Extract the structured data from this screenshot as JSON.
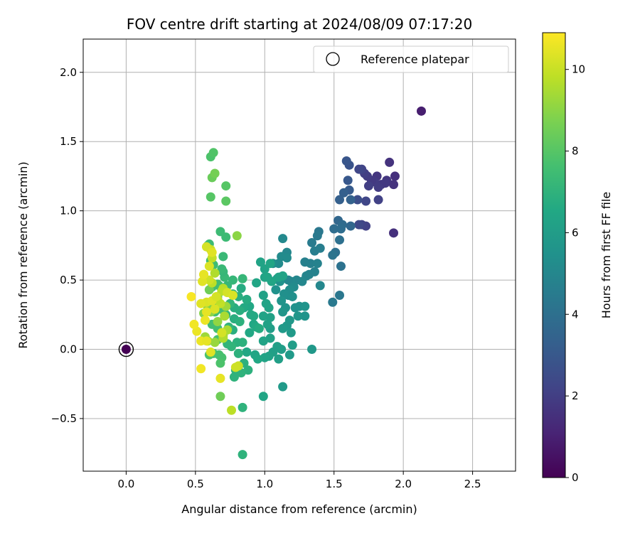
{
  "chart_data": {
    "type": "scatter",
    "title": "FOV centre drift starting at 2024/08/09 07:17:20",
    "xlabel": "Angular distance from reference (arcmin)",
    "ylabel": "Rotation from reference (arcmin)",
    "xlim": [
      -0.31,
      2.81
    ],
    "ylim": [
      -0.88,
      2.24
    ],
    "xticks": [
      "0.0",
      "0.5",
      "1.0",
      "1.5",
      "2.0",
      "2.5"
    ],
    "xtick_values": [
      0,
      0.5,
      1.0,
      1.5,
      2.0,
      2.5
    ],
    "yticks": [
      "−0.5",
      "0.0",
      "0.5",
      "1.0",
      "1.5",
      "2.0"
    ],
    "ytick_values": [
      -0.5,
      0,
      0.5,
      1.0,
      1.5,
      2.0
    ],
    "grid": true,
    "legend": {
      "label": "Reference platepar",
      "placement": "upper right"
    },
    "colorbar": {
      "label": "Hours from first FF file",
      "range": [
        0,
        10.9
      ],
      "ticks": [
        "0",
        "2",
        "4",
        "6",
        "8",
        "10"
      ],
      "tick_values": [
        0,
        2,
        4,
        6,
        8,
        10
      ],
      "colormap": "viridis"
    },
    "reference_point": {
      "x": 0.0,
      "y": 0.0,
      "hours": 0.0
    },
    "points": [
      [
        2.13,
        1.72,
        0.9
      ],
      [
        1.93,
        0.84,
        1.5
      ],
      [
        1.9,
        1.35,
        1.6
      ],
      [
        1.94,
        1.25,
        1.5
      ],
      [
        1.93,
        1.19,
        1.6
      ],
      [
        1.88,
        1.22,
        1.7
      ],
      [
        1.87,
        1.2,
        1.8
      ],
      [
        1.84,
        1.19,
        1.8
      ],
      [
        1.82,
        1.17,
        1.9
      ],
      [
        1.81,
        1.25,
        1.7
      ],
      [
        1.79,
        1.21,
        1.9
      ],
      [
        1.77,
        1.22,
        1.8
      ],
      [
        1.75,
        1.18,
        2.0
      ],
      [
        1.74,
        1.25,
        1.9
      ],
      [
        1.72,
        1.27,
        2.0
      ],
      [
        1.7,
        1.3,
        2.2
      ],
      [
        1.68,
        1.3,
        2.3
      ],
      [
        1.73,
        1.07,
        2.3
      ],
      [
        1.82,
        1.08,
        2.1
      ],
      [
        1.73,
        0.89,
        2.1
      ],
      [
        1.7,
        0.9,
        2.2
      ],
      [
        1.68,
        0.9,
        2.4
      ],
      [
        1.67,
        1.08,
        2.6
      ],
      [
        1.61,
        1.33,
        2.8
      ],
      [
        1.59,
        1.36,
        2.9
      ],
      [
        1.6,
        1.22,
        3.0
      ],
      [
        1.61,
        1.15,
        3.1
      ],
      [
        1.57,
        1.13,
        3.3
      ],
      [
        1.54,
        1.08,
        3.3
      ],
      [
        1.62,
        1.08,
        3.4
      ],
      [
        1.62,
        0.89,
        3.6
      ],
      [
        1.53,
        0.93,
        3.6
      ],
      [
        1.56,
        0.9,
        3.8
      ],
      [
        1.55,
        0.87,
        3.9
      ],
      [
        1.5,
        0.87,
        3.9
      ],
      [
        1.54,
        0.79,
        4.0
      ],
      [
        1.51,
        0.7,
        4.0
      ],
      [
        1.55,
        0.6,
        4.1
      ],
      [
        1.49,
        0.68,
        4.2
      ],
      [
        1.54,
        0.39,
        4.3
      ],
      [
        1.49,
        0.34,
        4.4
      ],
      [
        1.39,
        0.85,
        4.3
      ],
      [
        1.38,
        0.82,
        4.4
      ],
      [
        1.34,
        0.77,
        4.5
      ],
      [
        1.4,
        0.73,
        4.6
      ],
      [
        1.36,
        0.71,
        4.6
      ],
      [
        1.33,
        0.62,
        4.7
      ],
      [
        1.29,
        0.63,
        4.7
      ],
      [
        1.38,
        0.62,
        4.8
      ],
      [
        1.32,
        0.54,
        4.8
      ],
      [
        1.36,
        0.56,
        4.8
      ],
      [
        1.3,
        0.53,
        4.9
      ],
      [
        1.27,
        0.49,
        5.0
      ],
      [
        1.4,
        0.46,
        5.0
      ],
      [
        1.23,
        0.5,
        5.0
      ],
      [
        1.19,
        0.49,
        5.1
      ],
      [
        1.17,
        0.5,
        5.0
      ],
      [
        1.13,
        0.8,
        5.1
      ],
      [
        1.16,
        0.7,
        5.0
      ],
      [
        1.12,
        0.67,
        5.2
      ],
      [
        1.1,
        0.62,
        5.2
      ],
      [
        1.16,
        0.66,
        5.2
      ],
      [
        1.06,
        0.62,
        5.3
      ],
      [
        1.21,
        0.45,
        5.2
      ],
      [
        1.18,
        0.43,
        5.3
      ],
      [
        1.17,
        0.39,
        5.3
      ],
      [
        1.14,
        0.4,
        5.4
      ],
      [
        1.11,
        0.49,
        5.5
      ],
      [
        1.09,
        0.51,
        5.4
      ],
      [
        1.08,
        0.43,
        5.5
      ],
      [
        1.2,
        0.38,
        5.4
      ],
      [
        1.22,
        0.3,
        5.5
      ],
      [
        1.25,
        0.31,
        5.5
      ],
      [
        1.29,
        0.31,
        5.6
      ],
      [
        1.29,
        0.24,
        5.6
      ],
      [
        1.24,
        0.24,
        5.7
      ],
      [
        1.15,
        0.3,
        5.6
      ],
      [
        1.13,
        0.27,
        5.7
      ],
      [
        1.12,
        0.35,
        5.6
      ],
      [
        1.18,
        0.21,
        5.8
      ],
      [
        1.16,
        0.17,
        5.8
      ],
      [
        1.13,
        0.15,
        5.9
      ],
      [
        1.19,
        0.12,
        5.9
      ],
      [
        1.34,
        0.0,
        5.8
      ],
      [
        1.2,
        0.03,
        6.0
      ],
      [
        1.18,
        -0.04,
        5.9
      ],
      [
        1.13,
        -0.27,
        5.9
      ],
      [
        1.12,
        0.0,
        6.0
      ],
      [
        1.1,
        -0.07,
        6.1
      ],
      [
        1.09,
        0.02,
        6.1
      ],
      [
        1.06,
        -0.02,
        6.1
      ],
      [
        1.04,
        0.15,
        6.0
      ],
      [
        1.04,
        0.08,
        6.2
      ],
      [
        1.03,
        -0.05,
        6.2
      ],
      [
        1.0,
        -0.06,
        6.3
      ],
      [
        0.99,
        0.06,
        6.3
      ],
      [
        1.02,
        0.18,
        6.2
      ],
      [
        0.99,
        0.24,
        6.3
      ],
      [
        1.04,
        0.23,
        6.2
      ],
      [
        1.03,
        0.3,
        6.3
      ],
      [
        1.01,
        0.33,
        6.3
      ],
      [
        0.99,
        0.39,
        6.2
      ],
      [
        1.0,
        0.52,
        6.3
      ],
      [
        1.0,
        0.58,
        6.3
      ],
      [
        1.04,
        0.62,
        6.4
      ],
      [
        0.97,
        0.63,
        6.3
      ],
      [
        1.05,
        0.49,
        6.4
      ],
      [
        1.1,
        0.52,
        6.3
      ],
      [
        1.13,
        0.53,
        6.3
      ],
      [
        1.02,
        0.52,
        6.4
      ],
      [
        0.94,
        0.48,
        6.4
      ],
      [
        0.99,
        -0.34,
        6.4
      ],
      [
        0.93,
        -0.04,
        6.4
      ],
      [
        0.95,
        -0.07,
        6.5
      ],
      [
        0.87,
        -0.02,
        6.5
      ],
      [
        0.89,
        0.12,
        6.5
      ],
      [
        0.89,
        0.31,
        6.5
      ],
      [
        0.85,
        0.3,
        6.6
      ],
      [
        0.92,
        0.18,
        6.5
      ],
      [
        0.92,
        0.24,
        6.6
      ],
      [
        0.94,
        0.16,
        6.6
      ],
      [
        0.96,
        0.15,
        6.7
      ],
      [
        0.9,
        0.25,
        6.6
      ],
      [
        0.87,
        0.36,
        6.7
      ],
      [
        0.83,
        0.44,
        6.7
      ],
      [
        0.81,
        0.38,
        6.8
      ],
      [
        0.82,
        0.28,
        6.8
      ],
      [
        0.78,
        0.3,
        6.8
      ],
      [
        0.78,
        0.22,
        6.8
      ],
      [
        0.82,
        0.2,
        6.9
      ],
      [
        0.77,
        0.14,
        6.8
      ],
      [
        0.8,
        0.05,
        6.9
      ],
      [
        0.81,
        -0.03,
        6.9
      ],
      [
        0.84,
        0.05,
        6.9
      ],
      [
        0.85,
        -0.1,
        6.9
      ],
      [
        0.88,
        -0.15,
        6.9
      ],
      [
        0.83,
        -0.17,
        7.0
      ],
      [
        0.79,
        -0.15,
        7.0
      ],
      [
        0.78,
        -0.2,
        7.0
      ],
      [
        0.84,
        -0.42,
        7.0
      ],
      [
        0.84,
        -0.76,
        7.0
      ],
      [
        0.76,
        0.02,
        7.1
      ],
      [
        0.73,
        0.04,
        7.1
      ],
      [
        0.74,
        0.16,
        7.1
      ],
      [
        0.72,
        0.25,
        7.1
      ],
      [
        0.75,
        0.33,
        7.1
      ],
      [
        0.77,
        0.4,
        7.2
      ],
      [
        0.73,
        0.46,
        7.2
      ],
      [
        0.77,
        0.5,
        7.2
      ],
      [
        0.84,
        0.51,
        7.2
      ],
      [
        0.71,
        0.52,
        7.3
      ],
      [
        0.7,
        0.56,
        7.2
      ],
      [
        0.69,
        0.58,
        7.3
      ],
      [
        0.7,
        0.67,
        7.3
      ],
      [
        0.68,
        0.85,
        7.4
      ],
      [
        0.72,
        0.81,
        7.4
      ],
      [
        0.6,
        0.76,
        7.4
      ],
      [
        0.59,
        0.75,
        7.4
      ],
      [
        0.61,
        0.64,
        7.4
      ],
      [
        0.63,
        0.61,
        7.5
      ],
      [
        0.67,
        0.46,
        7.5
      ],
      [
        0.66,
        0.47,
        7.5
      ],
      [
        0.62,
        0.45,
        7.5
      ],
      [
        0.64,
        0.34,
        7.5
      ],
      [
        0.68,
        0.29,
        7.6
      ],
      [
        0.64,
        0.27,
        7.6
      ],
      [
        0.62,
        0.18,
        7.6
      ],
      [
        0.66,
        0.15,
        7.6
      ],
      [
        0.66,
        0.07,
        7.7
      ],
      [
        0.67,
        -0.04,
        7.7
      ],
      [
        0.69,
        -0.06,
        7.7
      ],
      [
        0.63,
        -0.03,
        7.7
      ],
      [
        0.68,
        -0.1,
        7.8
      ],
      [
        0.6,
        -0.04,
        7.8
      ],
      [
        0.61,
        1.39,
        7.8
      ],
      [
        0.63,
        1.42,
        7.9
      ],
      [
        0.61,
        1.1,
        8.0
      ],
      [
        0.72,
        1.18,
        8.0
      ],
      [
        0.72,
        1.07,
        8.1
      ],
      [
        0.62,
        1.24,
        8.4
      ],
      [
        0.64,
        1.27,
        8.6
      ],
      [
        0.8,
        0.82,
        9.0
      ],
      [
        0.68,
        -0.34,
        8.5
      ],
      [
        0.76,
        -0.44,
        9.8
      ],
      [
        0.6,
        0.43,
        8.5
      ],
      [
        0.66,
        0.38,
        8.7
      ],
      [
        0.59,
        0.3,
        8.8
      ],
      [
        0.56,
        0.26,
        8.9
      ],
      [
        0.66,
        0.2,
        9.1
      ],
      [
        0.61,
        0.27,
        9.0
      ],
      [
        0.59,
        0.06,
        9.2
      ],
      [
        0.57,
        0.09,
        9.3
      ],
      [
        0.64,
        0.05,
        9.2
      ],
      [
        0.7,
        0.1,
        9.3
      ],
      [
        0.73,
        0.14,
        9.5
      ],
      [
        0.7,
        0.08,
        9.6
      ],
      [
        0.71,
        0.24,
        9.5
      ],
      [
        0.72,
        0.31,
        9.3
      ],
      [
        0.7,
        0.44,
        9.7
      ],
      [
        0.69,
        0.42,
        9.8
      ],
      [
        0.68,
        0.33,
        9.9
      ],
      [
        0.66,
        0.36,
        9.8
      ],
      [
        0.64,
        0.55,
        9.6
      ],
      [
        0.62,
        0.48,
        9.8
      ],
      [
        0.6,
        0.5,
        10.1
      ],
      [
        0.62,
        0.66,
        9.9
      ],
      [
        0.61,
        0.72,
        10.0
      ],
      [
        0.58,
        0.74,
        10.2
      ],
      [
        0.56,
        0.54,
        10.3
      ],
      [
        0.55,
        0.49,
        10.4
      ],
      [
        0.58,
        0.34,
        10.3
      ],
      [
        0.54,
        0.33,
        10.4
      ],
      [
        0.58,
        0.27,
        10.5
      ],
      [
        0.57,
        0.21,
        10.6
      ],
      [
        0.51,
        0.13,
        10.6
      ],
      [
        0.49,
        0.18,
        10.7
      ],
      [
        0.47,
        0.38,
        10.8
      ],
      [
        0.54,
        0.06,
        10.6
      ],
      [
        0.58,
        0.06,
        10.5
      ],
      [
        0.61,
        -0.02,
        10.4
      ],
      [
        0.68,
        -0.21,
        10.5
      ],
      [
        0.54,
        -0.14,
        10.7
      ],
      [
        0.81,
        -0.12,
        10.0
      ],
      [
        0.79,
        -0.13,
        10.1
      ],
      [
        0.73,
        0.41,
        10.2
      ],
      [
        0.64,
        0.29,
        10.3
      ],
      [
        0.62,
        0.35,
        10.4
      ],
      [
        0.65,
        0.38,
        10.2
      ],
      [
        0.77,
        0.39,
        10.3
      ],
      [
        0.69,
        0.12,
        10.2
      ],
      [
        0.56,
        0.54,
        10.5
      ],
      [
        0.62,
        0.7,
        10.4
      ],
      [
        0.6,
        0.6,
        10.3
      ]
    ]
  }
}
